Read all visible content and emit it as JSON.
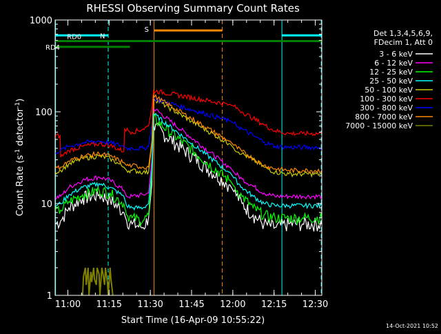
{
  "chart_data": {
    "type": "line",
    "title": "RHESSI Observing Summary Count Rates",
    "xlabel": "Start Time (16-Apr-09 10:55:22)",
    "ylabel_main": "Count Rate (s",
    "ylabel_sup1": "-1",
    "ylabel_mid": " detector",
    "ylabel_sup2": "-1",
    "ylabel_end": ")",
    "x_unit": "minutes since 10:55:22",
    "xlim": [
      0,
      97
    ],
    "ylim": [
      1,
      1000
    ],
    "y_scale": "log",
    "x_ticks": [
      {
        "value": 4.63,
        "label": "11:00"
      },
      {
        "value": 19.63,
        "label": "11:15"
      },
      {
        "value": 34.63,
        "label": "11:30"
      },
      {
        "value": 49.63,
        "label": "11:45"
      },
      {
        "value": 64.63,
        "label": "12:00"
      },
      {
        "value": 79.63,
        "label": "12:15"
      },
      {
        "value": 94.63,
        "label": "12:30"
      }
    ],
    "y_ticks": [
      {
        "value": 1,
        "label": "1"
      },
      {
        "value": 10,
        "label": "10"
      },
      {
        "value": 100,
        "label": "100"
      },
      {
        "value": 1000,
        "label": "1000"
      }
    ],
    "legend_header": [
      "Det 1,3,4,5,6,9,",
      "FDecim 1, Att 0"
    ],
    "series": [
      {
        "name": "3 - 6 keV",
        "color": "#ffffff",
        "x": [
          0,
          2,
          5,
          10,
          16,
          20,
          25,
          26,
          28,
          32,
          34,
          35.2,
          35.8,
          63.2,
          63.6,
          65,
          68,
          72,
          76,
          80,
          85,
          90,
          97
        ],
        "y": [
          6,
          6.5,
          9,
          11.5,
          12.5,
          11,
          8,
          6.5,
          6,
          5.5,
          7,
          16,
          70,
          16,
          16,
          13.5,
          10,
          7.5,
          6,
          5.5,
          6,
          6,
          6
        ]
      },
      {
        "name": "6 - 12 keV",
        "color": "#ff00ff",
        "x": [
          0,
          2,
          5,
          10,
          16,
          20,
          25,
          26,
          28,
          32,
          34,
          35.2,
          35.8,
          63.2,
          63.6,
          65,
          68,
          72,
          76,
          80,
          85,
          90,
          97
        ],
        "y": [
          11.5,
          12,
          15,
          18,
          19.5,
          18,
          14,
          12,
          12,
          12.5,
          13,
          30,
          110,
          25,
          25,
          22,
          18.5,
          15.5,
          13,
          12,
          12,
          12,
          12
        ]
      },
      {
        "name": "12 - 25 keV",
        "color": "#00ff00",
        "x": [
          0,
          2,
          5,
          10,
          16,
          20,
          25,
          26,
          28,
          32,
          34,
          35.2,
          35.8,
          63.2,
          63.6,
          65,
          68,
          72,
          76,
          80,
          85,
          90,
          97
        ],
        "y": [
          8,
          8.5,
          10.5,
          12.5,
          14,
          13,
          10,
          7.5,
          7,
          6.5,
          7.5,
          20,
          85,
          18,
          18,
          15.5,
          12,
          9,
          7.5,
          7,
          7,
          7,
          7
        ]
      },
      {
        "name": "25 - 50 keV",
        "color": "#00ffff",
        "x": [
          0,
          2,
          5,
          10,
          16,
          20,
          25,
          26,
          28,
          32,
          34,
          35.2,
          35.8,
          63.2,
          63.6,
          65,
          68,
          72,
          76,
          80,
          85,
          90,
          97
        ],
        "y": [
          9.5,
          10,
          12.5,
          15,
          16.5,
          15,
          12,
          9.5,
          9,
          9,
          10,
          24,
          95,
          22,
          22,
          19,
          15,
          12,
          10,
          9.5,
          9.5,
          9.5,
          9.5
        ]
      },
      {
        "name": "50 - 100 keV",
        "color": "#cccc00",
        "x": [
          0,
          2,
          5,
          10,
          16,
          20,
          25,
          26,
          28,
          32,
          34,
          35.2,
          35.8,
          63.2,
          63.6,
          65,
          68,
          72,
          76,
          80,
          85,
          90,
          97
        ],
        "y": [
          22,
          23,
          27,
          31,
          33,
          31,
          25,
          23,
          23,
          22,
          22,
          45,
          140,
          45,
          45,
          40,
          35,
          30,
          25,
          22,
          21,
          21,
          21
        ]
      },
      {
        "name": "100 - 300 keV",
        "color": "#ff0000",
        "x": [
          0,
          0.2,
          1.8,
          2,
          5,
          10,
          16,
          20,
          25,
          25.3,
          28,
          32,
          34,
          35.2,
          35.8,
          63.2,
          63.6,
          65,
          68,
          72,
          76,
          80,
          85,
          90,
          97
        ],
        "y": [
          50,
          55,
          55,
          32,
          38,
          42,
          45,
          43,
          37,
          65,
          60,
          65,
          70,
          110,
          170,
          120,
          120,
          115,
          100,
          85,
          72,
          62,
          58,
          58,
          58
        ]
      },
      {
        "name": "300 - 800 keV",
        "color": "#0000ff",
        "x": [
          0,
          2,
          5,
          10,
          16,
          20,
          25,
          26,
          28,
          32,
          34,
          35.2,
          35.8,
          63.2,
          63.6,
          65,
          68,
          72,
          76,
          80,
          85,
          90,
          97
        ],
        "y": [
          36,
          38,
          42,
          46,
          48,
          46,
          42,
          40,
          40,
          40,
          42,
          70,
          140,
          80,
          80,
          75,
          65,
          55,
          47,
          42,
          41,
          41,
          41
        ]
      },
      {
        "name": "800 - 7000 keV",
        "color": "#ff8800",
        "x": [
          0,
          2,
          5,
          10,
          16,
          20,
          25,
          26,
          28,
          32,
          34,
          35.2,
          35.8,
          63.2,
          63.6,
          65,
          68,
          72,
          76,
          80,
          85,
          90,
          97
        ],
        "y": [
          24,
          25,
          29,
          33,
          35,
          33,
          28,
          26,
          26,
          25,
          25,
          48,
          150,
          48,
          48,
          43,
          37,
          31,
          26,
          24,
          23,
          23,
          23
        ]
      },
      {
        "name": "7000 - 15000 keV",
        "color": "#808000",
        "x": [
          10,
          10.3,
          11,
          11.3,
          12,
          12.3,
          13,
          13.3,
          14,
          14.3,
          15,
          15.3,
          16,
          16.3,
          17,
          17.3,
          18,
          18.3,
          19,
          19.3,
          20,
          20.3,
          21
        ],
        "y": [
          1,
          1.6,
          2,
          1.3,
          2,
          1,
          1.8,
          1.4,
          2,
          1.5,
          1.3,
          2,
          1.7,
          1,
          2,
          1.8,
          1.3,
          2,
          1.4,
          1,
          2,
          1.5,
          1
        ]
      }
    ],
    "overlays": {
      "attenuator_S": {
        "label": "S",
        "color": "#ff8800",
        "x_start": 36.0,
        "x_end": 60.8,
        "y": 770
      },
      "saa_N": {
        "label": "N",
        "color": "#00ffff",
        "segments": [
          [
            0,
            19.3
          ],
          [
            82.5,
            97
          ]
        ],
        "y": 680
      },
      "rd0": {
        "label": "RD0",
        "color": "#008000",
        "segments": [
          [
            0,
            29.6
          ],
          [
            29.6,
            97
          ]
        ],
        "ys": [
          590,
          590
        ]
      },
      "rd4": {
        "label": "RD4",
        "color": "#008000",
        "segments": [
          [
            0,
            27.2
          ]
        ],
        "ys": [
          510
        ]
      }
    },
    "timestamp": "14-Oct-2021 10:52"
  },
  "colors": {
    "background": "#000000",
    "foreground": "#ffffff"
  }
}
